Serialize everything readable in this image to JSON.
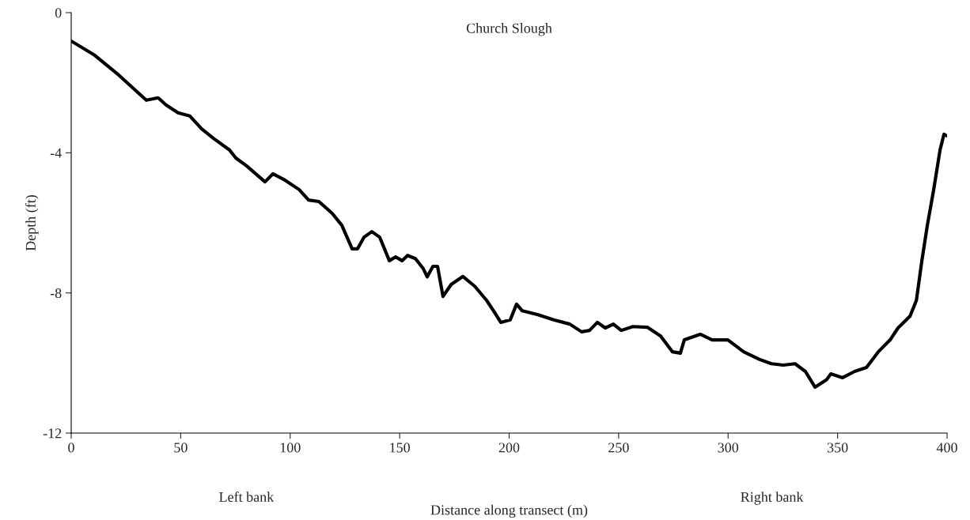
{
  "chart_data": {
    "type": "line",
    "title": "Church Slough",
    "xlabel": "Distance along transect (m)",
    "ylabel": "Depth (ft)",
    "annotations": [
      "Left bank",
      "Right bank"
    ],
    "series": [
      {
        "color": "#000000",
        "x": [
          0,
          10.8,
          21.7,
          34.3,
          39.7,
          43.4,
          48.8,
          54.2,
          59.6,
          65.0,
          72.3,
          75.2,
          80.2,
          88.5,
          92.1,
          97.6,
          104.1,
          108.4,
          113.1,
          119.2,
          123.6,
          128.3,
          130.8,
          133.7,
          137.3,
          140.9,
          145.3,
          148.2,
          151.1,
          153.6,
          157.2,
          160.8,
          162.6,
          165.2,
          167.3,
          169.8,
          173.5,
          178.9,
          184.3,
          189.7,
          193.3,
          196.2,
          200.5,
          203.4,
          206.0,
          213.2,
          220.4,
          227.7,
          233.1,
          236.7,
          240.3,
          243.9,
          247.6,
          251.2,
          256.5,
          263.1,
          269.2,
          274.6,
          278.2,
          280.0,
          287.3,
          292.7,
          299.9,
          307.1,
          314.4,
          319.8,
          325.2,
          330.6,
          335.3,
          339.7,
          345.1,
          346.9,
          352.3,
          357.8,
          363.2,
          368.6,
          374.0,
          377.6,
          383.1,
          386.0,
          388.5,
          391.0,
          393.9,
          396.8,
          398.6,
          400
        ],
        "values": [
          -0.81,
          -1.22,
          -1.78,
          -2.5,
          -2.43,
          -2.64,
          -2.86,
          -2.95,
          -3.32,
          -3.59,
          -3.92,
          -4.15,
          -4.38,
          -4.83,
          -4.6,
          -4.78,
          -5.05,
          -5.35,
          -5.39,
          -5.73,
          -6.07,
          -6.74,
          -6.74,
          -6.41,
          -6.25,
          -6.41,
          -7.08,
          -6.97,
          -7.08,
          -6.93,
          -7.02,
          -7.31,
          -7.54,
          -7.24,
          -7.24,
          -8.1,
          -7.76,
          -7.53,
          -7.81,
          -8.21,
          -8.55,
          -8.84,
          -8.77,
          -8.32,
          -8.51,
          -8.62,
          -8.77,
          -8.89,
          -9.11,
          -9.07,
          -8.84,
          -9.0,
          -8.89,
          -9.07,
          -8.96,
          -8.98,
          -9.23,
          -9.68,
          -9.72,
          -9.34,
          -9.18,
          -9.34,
          -9.34,
          -9.68,
          -9.9,
          -10.02,
          -10.06,
          -10.02,
          -10.24,
          -10.69,
          -10.47,
          -10.31,
          -10.42,
          -10.24,
          -10.13,
          -9.68,
          -9.34,
          -9.0,
          -8.66,
          -8.21,
          -7.08,
          -6.07,
          -5.05,
          -3.92,
          -3.47,
          -3.52
        ]
      }
    ],
    "xlim": [
      0,
      400
    ],
    "xticks": [
      0,
      50,
      100,
      150,
      200,
      250,
      300,
      350,
      400
    ],
    "ylim": [
      -12,
      0
    ],
    "yticks": [
      -12,
      -8,
      -4,
      0
    ],
    "grid": false,
    "legend": false,
    "marker": "none",
    "line_style": "solid"
  }
}
